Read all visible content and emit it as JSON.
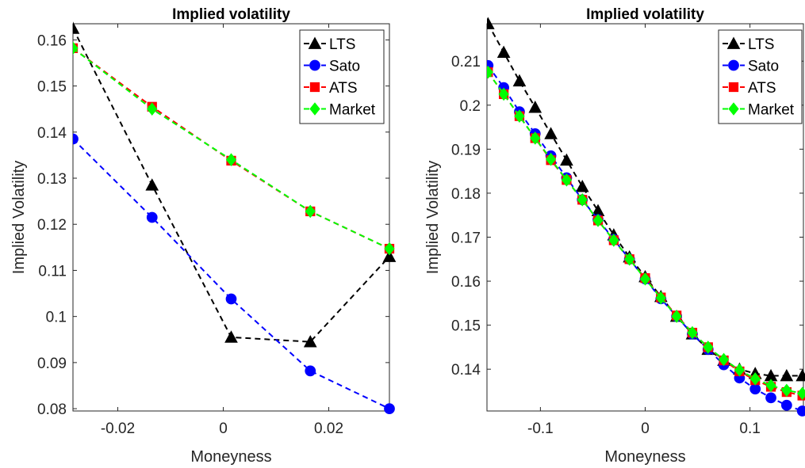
{
  "chart_data": [
    {
      "type": "line",
      "title": "Implied volatility",
      "xlabel": "Moneyness",
      "ylabel": "Implied Volatility",
      "xlim": [
        -0.0285,
        0.0315
      ],
      "ylim": [
        0.0795,
        0.1635
      ],
      "xticks": [
        -0.02,
        0,
        0.02
      ],
      "xtick_labels": [
        "-0.02",
        "0",
        "0.02"
      ],
      "yticks": [
        0.08,
        0.09,
        0.1,
        0.11,
        0.12,
        0.13,
        0.14,
        0.15,
        0.16
      ],
      "ytick_labels": [
        "0.08",
        "0.09",
        "0.1",
        "0.11",
        "0.12",
        "0.13",
        "0.14",
        "0.15",
        "0.16"
      ],
      "grid": false,
      "legend_position": "top-right",
      "x": [
        -0.0285,
        -0.0135,
        0.0015,
        0.0165,
        0.0315
      ],
      "series": [
        {
          "name": "LTS",
          "color": "#000000",
          "marker": "triangle",
          "values": [
            0.1625,
            0.1285,
            0.0955,
            0.0945,
            0.113
          ]
        },
        {
          "name": "Sato",
          "color": "#0000ff",
          "marker": "circle",
          "values": [
            0.1385,
            0.1215,
            0.1038,
            0.0882,
            0.08
          ]
        },
        {
          "name": "ATS",
          "color": "#ff0000",
          "marker": "square",
          "values": [
            0.1582,
            0.1455,
            0.1338,
            0.1228,
            0.1147
          ]
        },
        {
          "name": "Market",
          "color": "#00ff00",
          "marker": "diamond",
          "values": [
            0.1582,
            0.145,
            0.134,
            0.1228,
            0.1147
          ]
        }
      ]
    },
    {
      "type": "line",
      "title": "Implied volatility",
      "xlabel": "Moneyness",
      "ylabel": "Implied Volatility",
      "xlim": [
        -0.151,
        0.151
      ],
      "ylim": [
        0.1305,
        0.2185
      ],
      "xticks": [
        -0.1,
        0,
        0.1
      ],
      "xtick_labels": [
        "-0.1",
        "0",
        "0.1"
      ],
      "yticks": [
        0.14,
        0.15,
        0.16,
        0.17,
        0.18,
        0.19,
        0.2,
        0.21
      ],
      "ytick_labels": [
        "0.14",
        "0.15",
        "0.16",
        "0.17",
        "0.18",
        "0.19",
        "0.2",
        "0.21"
      ],
      "grid": false,
      "legend_position": "top-right",
      "x": [
        -0.15,
        -0.135,
        -0.12,
        -0.105,
        -0.09,
        -0.075,
        -0.06,
        -0.045,
        -0.03,
        -0.015,
        0,
        0.015,
        0.03,
        0.045,
        0.06,
        0.075,
        0.09,
        0.105,
        0.12,
        0.135,
        0.15
      ],
      "series": [
        {
          "name": "LTS",
          "color": "#000000",
          "marker": "triangle",
          "values": [
            0.2185,
            0.212,
            0.2055,
            0.1995,
            0.1935,
            0.1875,
            0.1815,
            0.176,
            0.1705,
            0.1655,
            0.161,
            0.1565,
            0.152,
            0.148,
            0.1445,
            0.142,
            0.14,
            0.139,
            0.1385,
            0.1385,
            0.1385
          ]
        },
        {
          "name": "Sato",
          "color": "#0000ff",
          "marker": "circle",
          "values": [
            0.209,
            0.204,
            0.1985,
            0.1935,
            0.1885,
            0.1835,
            0.1785,
            0.174,
            0.1695,
            0.165,
            0.1605,
            0.156,
            0.152,
            0.148,
            0.1445,
            0.141,
            0.138,
            0.1355,
            0.1335,
            0.1318,
            0.1305
          ]
        },
        {
          "name": "ATS",
          "color": "#ff0000",
          "marker": "square",
          "values": [
            0.2075,
            0.2025,
            0.1975,
            0.1925,
            0.1875,
            0.183,
            0.1785,
            0.1738,
            0.1693,
            0.165,
            0.1607,
            0.1563,
            0.1522,
            0.1483,
            0.145,
            0.142,
            0.1395,
            0.1375,
            0.136,
            0.1348,
            0.134
          ]
        },
        {
          "name": "Market",
          "color": "#00ff00",
          "marker": "diamond",
          "values": [
            0.2075,
            0.2025,
            0.1975,
            0.1925,
            0.1877,
            0.183,
            0.1785,
            0.1738,
            0.1693,
            0.165,
            0.1605,
            0.1562,
            0.152,
            0.1483,
            0.145,
            0.1422,
            0.1398,
            0.1378,
            0.1363,
            0.1352,
            0.1345
          ]
        }
      ]
    }
  ]
}
